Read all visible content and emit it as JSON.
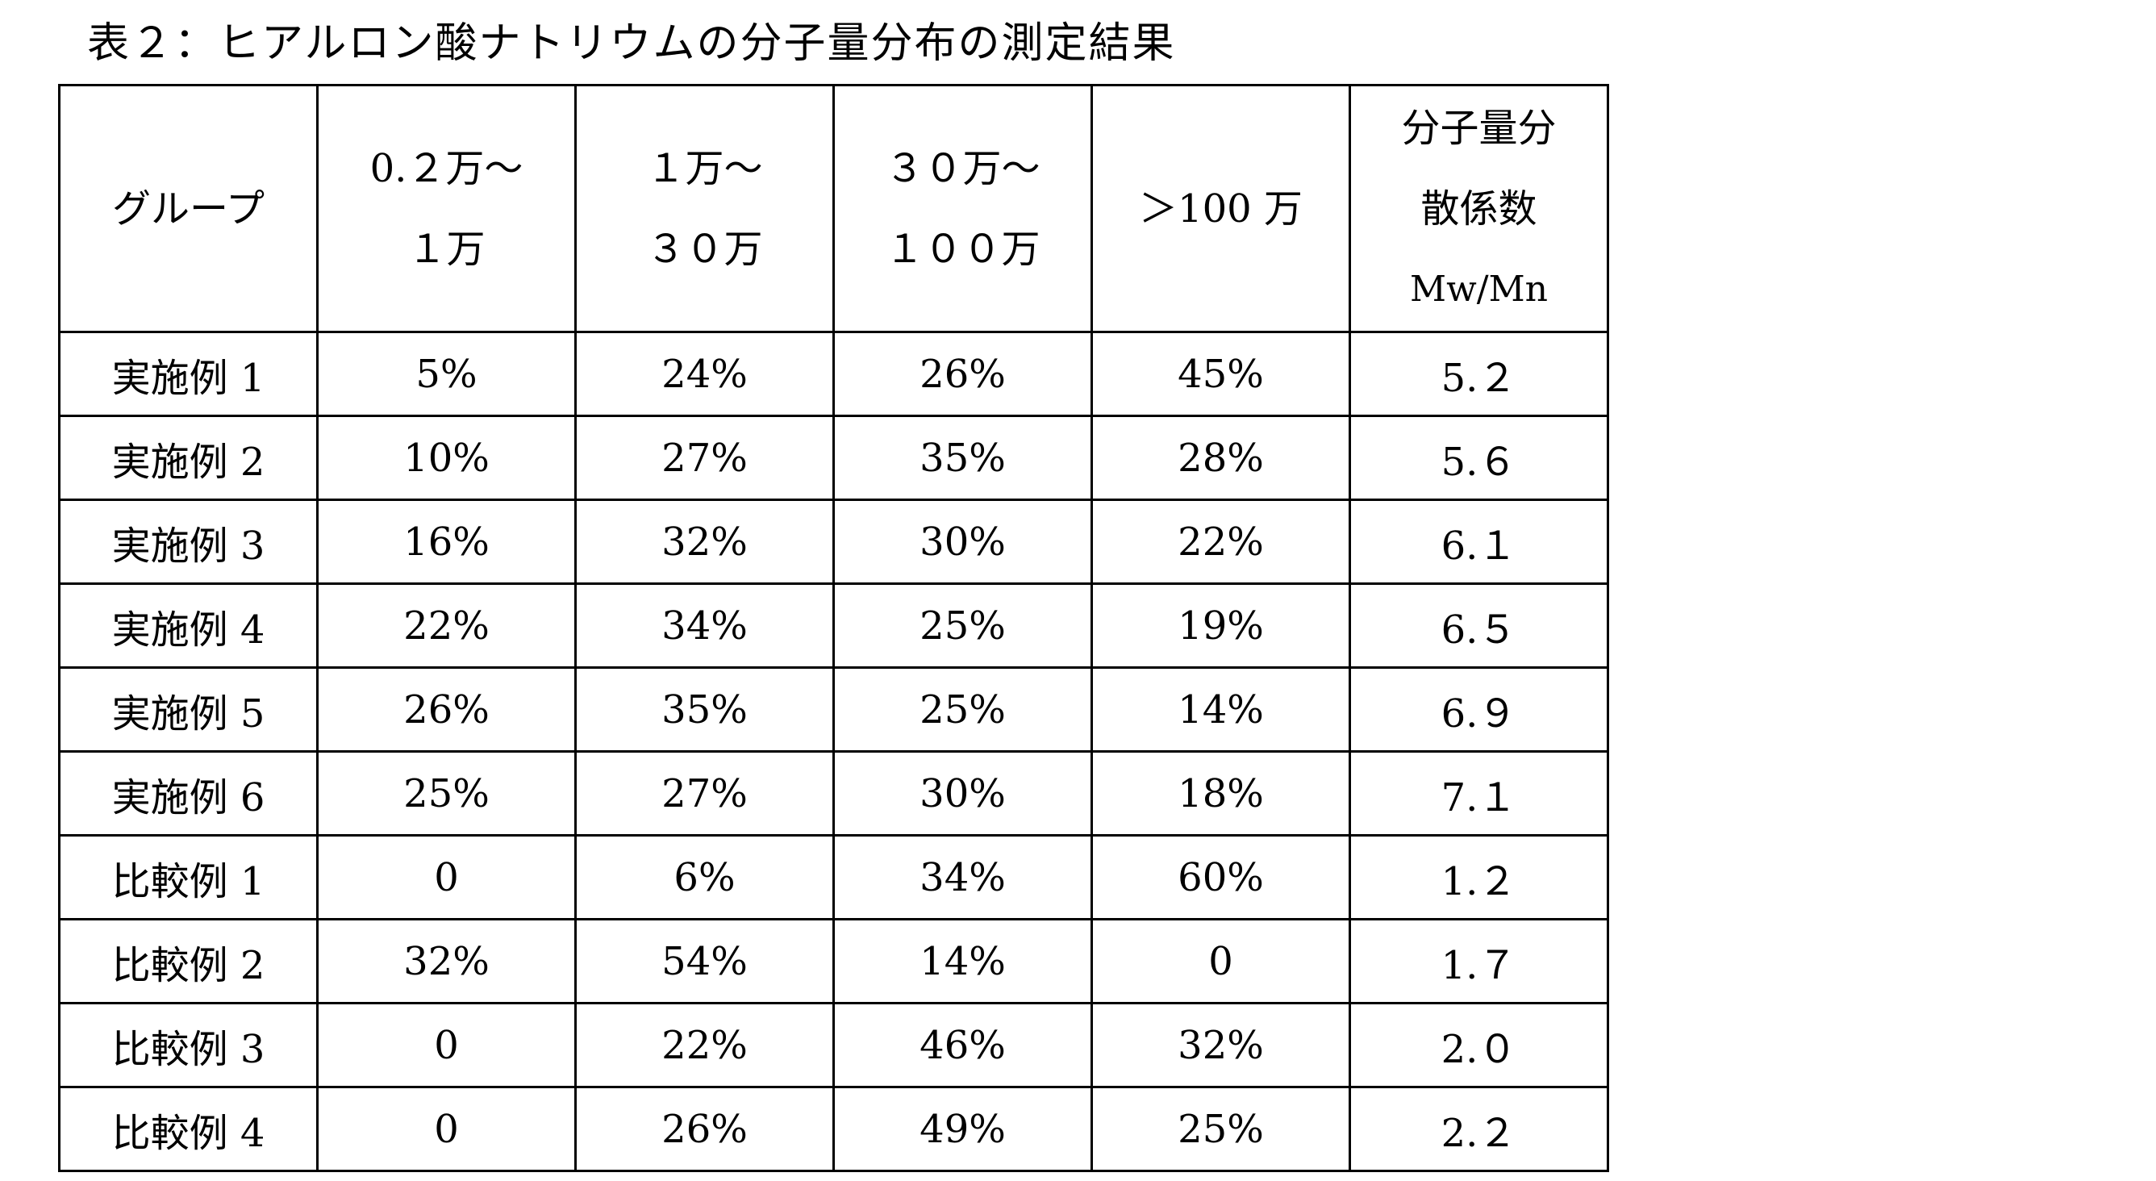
{
  "caption": "表２：ヒアルロン酸ナトリウムの分子量分布の測定結果",
  "table": {
    "headers": [
      {
        "lines": [
          "グループ"
        ]
      },
      {
        "lines": [
          "0.２万～",
          "１万"
        ]
      },
      {
        "lines": [
          "１万～",
          "３０万"
        ]
      },
      {
        "lines": [
          "３０万～",
          "１００万"
        ]
      },
      {
        "lines": [
          "＞100 万"
        ]
      },
      {
        "lines": [
          "分子量分",
          "散係数",
          "Mw/Mn"
        ]
      }
    ],
    "rows": [
      [
        "実施例 1",
        "5%",
        "24%",
        "26%",
        "45%",
        "5.２"
      ],
      [
        "実施例 2",
        "10%",
        "27%",
        "35%",
        "28%",
        "5.６"
      ],
      [
        "実施例 3",
        "16%",
        "32%",
        "30%",
        "22%",
        "6.１"
      ],
      [
        "実施例 4",
        "22%",
        "34%",
        "25%",
        "19%",
        "6.５"
      ],
      [
        "実施例 5",
        "26%",
        "35%",
        "25%",
        "14%",
        "6.９"
      ],
      [
        "実施例 6",
        "25%",
        "27%",
        "30%",
        "18%",
        "7.１"
      ],
      [
        "比較例 1",
        "0",
        "6%",
        "34%",
        "60%",
        "1.２"
      ],
      [
        "比較例 2",
        "32%",
        "54%",
        "14%",
        "0",
        "1.７"
      ],
      [
        "比較例 3",
        "0",
        "22%",
        "46%",
        "32%",
        "2.０"
      ],
      [
        "比較例 4",
        "0",
        "26%",
        "49%",
        "25%",
        "2.２"
      ]
    ]
  }
}
